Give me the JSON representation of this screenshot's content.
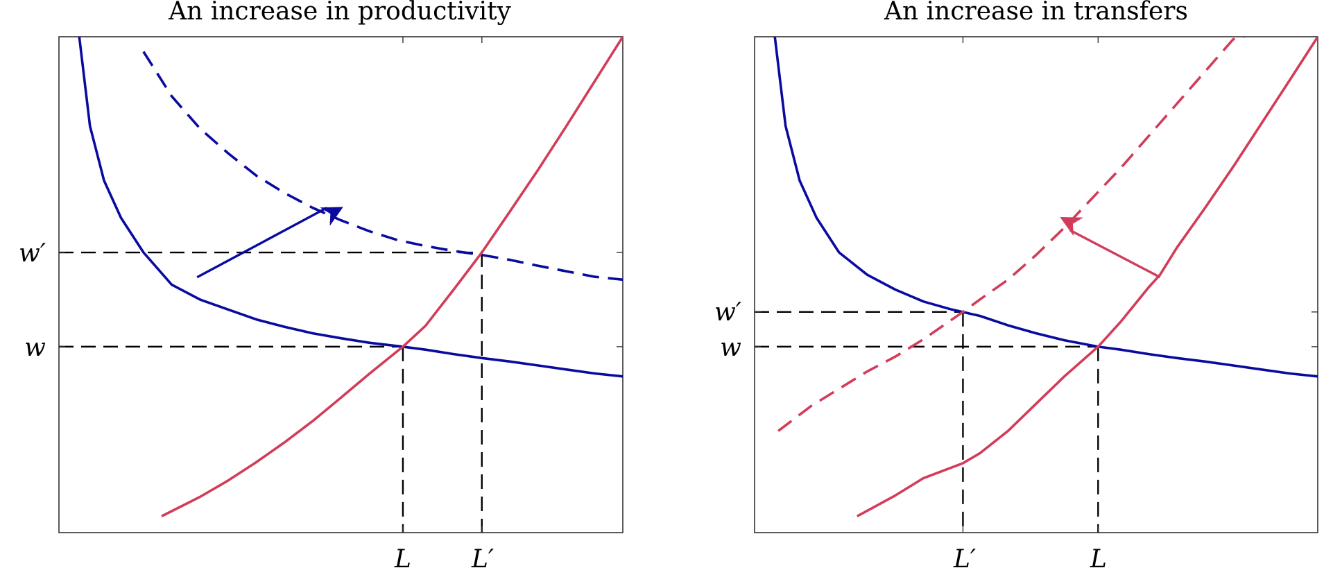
{
  "colors": {
    "demand": "#0a0aa0",
    "supply": "#d23c5a",
    "guides": "#000000"
  },
  "chart_data": [
    {
      "type": "line",
      "title": "An increase in productivity",
      "xlim": [
        0,
        10
      ],
      "ylim": [
        0,
        10
      ],
      "grid": false,
      "x_tick_values": [
        6.1,
        7.5
      ],
      "x_tick_labels": [
        "L",
        "L′"
      ],
      "y_tick_values": [
        3.75,
        5.65
      ],
      "y_tick_labels": [
        "w",
        "w′"
      ],
      "series": [
        {
          "role": "demand",
          "style": "solid",
          "x": [
            0.36,
            0.55,
            0.8,
            1.1,
            1.5,
            2.0,
            2.5,
            3.0,
            3.5,
            4.0,
            4.5,
            5.0,
            5.5,
            6.1,
            6.5,
            7.0,
            7.5,
            8.0,
            8.5,
            9.0,
            9.5,
            10.0
          ],
          "y": [
            10.0,
            8.2,
            7.1,
            6.35,
            5.65,
            5.0,
            4.7,
            4.5,
            4.3,
            4.15,
            4.02,
            3.92,
            3.83,
            3.75,
            3.69,
            3.6,
            3.52,
            3.45,
            3.37,
            3.29,
            3.21,
            3.15
          ]
        },
        {
          "role": "demand",
          "style": "dashed",
          "x": [
            1.5,
            2.0,
            2.5,
            3.0,
            3.5,
            4.0,
            4.5,
            5.0,
            5.5,
            6.0,
            6.5,
            7.0,
            7.5,
            8.0,
            8.5,
            9.0,
            9.5,
            10.0
          ],
          "y": [
            9.7,
            8.8,
            8.15,
            7.65,
            7.2,
            6.85,
            6.55,
            6.3,
            6.08,
            5.9,
            5.78,
            5.68,
            5.6,
            5.5,
            5.38,
            5.27,
            5.16,
            5.1
          ]
        },
        {
          "role": "supply",
          "style": "solid",
          "x": [
            1.82,
            2.5,
            3.0,
            3.5,
            4.0,
            4.5,
            5.0,
            5.5,
            6.1,
            6.5,
            7.0,
            7.5,
            8.0,
            8.5,
            9.0,
            9.5,
            10.0
          ],
          "y": [
            0.33,
            0.72,
            1.05,
            1.42,
            1.82,
            2.25,
            2.72,
            3.2,
            3.75,
            4.17,
            4.9,
            5.65,
            6.48,
            7.32,
            8.2,
            9.1,
            10.0
          ]
        }
      ],
      "arrow": {
        "role": "demand",
        "from": [
          2.45,
          5.15
        ],
        "to": [
          4.75,
          6.55
        ]
      }
    },
    {
      "type": "line",
      "title": "An increase in transfers",
      "xlim": [
        0,
        10
      ],
      "ylim": [
        0,
        10
      ],
      "grid": false,
      "x_tick_values": [
        3.7,
        6.1
      ],
      "x_tick_labels": [
        "L′",
        "L"
      ],
      "y_tick_values": [
        3.75,
        4.45
      ],
      "y_tick_labels": [
        "w",
        "w′"
      ],
      "series": [
        {
          "role": "demand",
          "style": "solid",
          "x": [
            0.36,
            0.55,
            0.8,
            1.1,
            1.5,
            2.0,
            2.5,
            3.0,
            3.5,
            4.0,
            4.5,
            5.0,
            5.5,
            6.1,
            6.5,
            7.0,
            7.5,
            8.0,
            8.5,
            9.0,
            9.5,
            10.0
          ],
          "y": [
            10.0,
            8.2,
            7.1,
            6.35,
            5.65,
            5.2,
            4.9,
            4.66,
            4.5,
            4.37,
            4.18,
            4.02,
            3.88,
            3.75,
            3.69,
            3.6,
            3.52,
            3.45,
            3.37,
            3.29,
            3.21,
            3.15
          ]
        },
        {
          "role": "supply",
          "style": "solid",
          "x": [
            1.82,
            2.5,
            3.0,
            3.7,
            4.0,
            4.5,
            5.0,
            5.5,
            6.1,
            6.5,
            7.0,
            7.2,
            7.5,
            8.0,
            8.5,
            9.0,
            9.5,
            10.0
          ],
          "y": [
            0.33,
            0.75,
            1.1,
            1.4,
            1.6,
            2.05,
            2.6,
            3.15,
            3.75,
            4.25,
            4.95,
            5.2,
            5.75,
            6.55,
            7.38,
            8.25,
            9.12,
            10.0
          ]
        },
        {
          "role": "supply",
          "style": "dashed",
          "x": [
            0.42,
            1.0,
            1.5,
            2.0,
            2.5,
            3.0,
            3.7,
            4.0,
            4.5,
            5.0,
            5.5,
            6.0,
            6.5,
            7.0,
            7.5,
            8.0,
            8.5,
            8.7
          ],
          "y": [
            2.05,
            2.55,
            2.9,
            3.25,
            3.55,
            3.9,
            4.45,
            4.7,
            5.1,
            5.6,
            6.15,
            6.75,
            7.35,
            8.0,
            8.65,
            9.3,
            9.95,
            10.0
          ]
        }
      ],
      "arrow": {
        "role": "supply",
        "from": [
          7.2,
          5.15
        ],
        "to": [
          5.6,
          6.1
        ]
      }
    }
  ]
}
